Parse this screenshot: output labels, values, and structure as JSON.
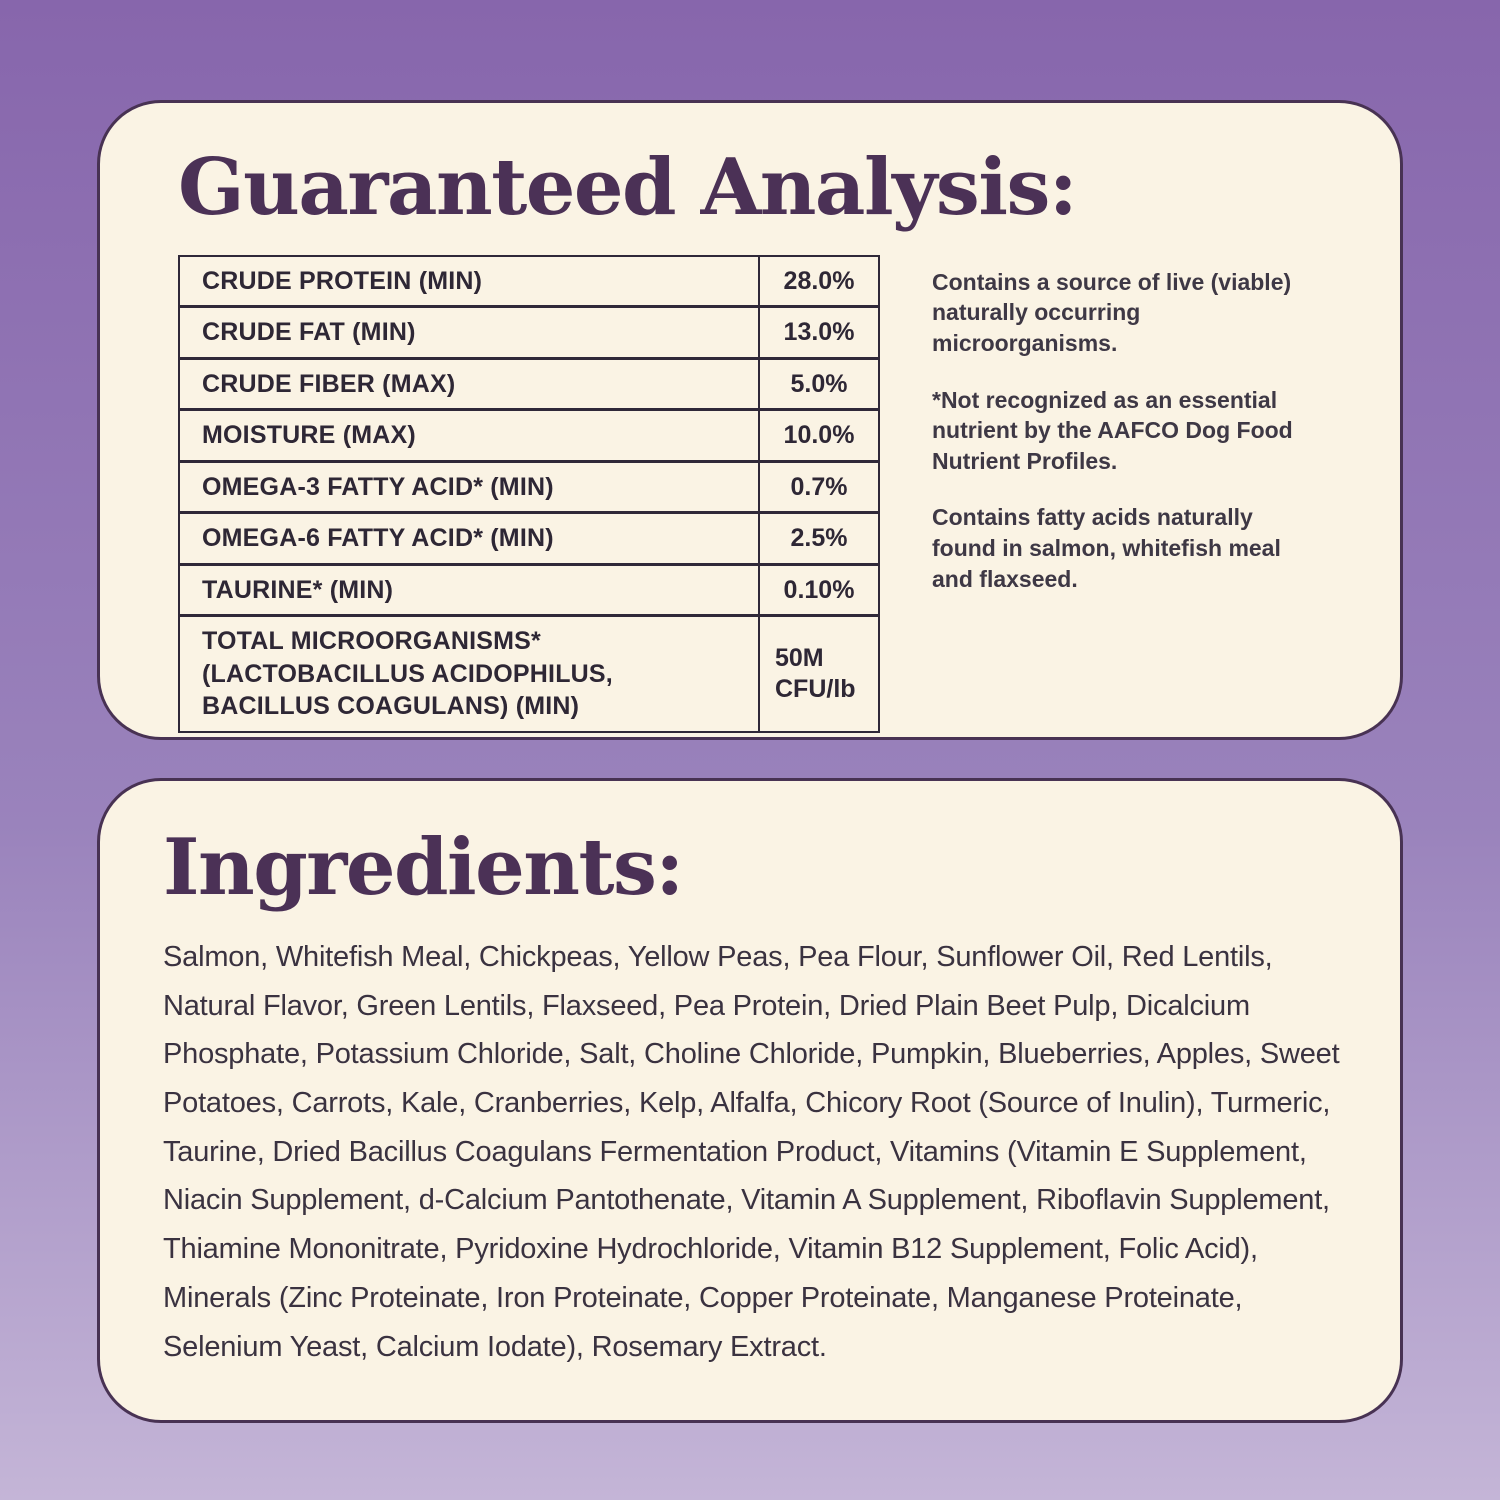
{
  "colors": {
    "background_gradient_top": "#8766AC",
    "background_gradient_bottom": "#C4B5D7",
    "card_background": "#FAF3E4",
    "card_border": "#483253",
    "heading_text": "#4B3156",
    "table_border": "#2F2838",
    "body_text": "#2E2735"
  },
  "analysis": {
    "title": "Guaranteed Analysis:",
    "table": {
      "rows": [
        {
          "label": "CRUDE PROTEIN (MIN)",
          "value": "28.0%"
        },
        {
          "label": "CRUDE FAT (MIN)",
          "value": "13.0%"
        },
        {
          "label": "CRUDE FIBER (MAX)",
          "value": "5.0%"
        },
        {
          "label": "MOISTURE (MAX)",
          "value": "10.0%"
        },
        {
          "label": "OMEGA-3 FATTY ACID* (MIN)",
          "value": "0.7%"
        },
        {
          "label": "OMEGA-6 FATTY ACID* (MIN)",
          "value": "2.5%"
        },
        {
          "label": "TAURINE* (MIN)",
          "value": "0.10%"
        },
        {
          "label": "TOTAL MICROORGANISMS* (LACTOBACILLUS ACIDOPHILUS, BACILLUS COAGULANS) (MIN)",
          "value": "50M CFU/lb",
          "value_multiline": true
        }
      ]
    },
    "notes": [
      "Contains a source of live (viable) naturally occurring microorganisms.",
      "*Not recognized as an essential nutrient by the AAFCO Dog Food Nutrient Profiles.",
      "Contains fatty acids naturally found in salmon, whitefish meal and flaxseed."
    ]
  },
  "ingredients": {
    "title": "Ingredients:",
    "text": "Salmon, Whitefish Meal, Chickpeas, Yellow Peas, Pea Flour, Sunflower Oil, Red Lentils, Natural Flavor, Green Lentils, Flaxseed, Pea Protein, Dried Plain Beet Pulp, Dicalcium Phosphate, Potassium Chloride, Salt, Choline Chloride, Pumpkin, Blueberries, Apples, Sweet Potatoes, Carrots, Kale, Cranberries, Kelp, Alfalfa, Chicory Root (Source of Inulin), Turmeric, Taurine, Dried Bacillus Coagulans Fermentation Product, Vitamins (Vitamin E Supplement, Niacin Supplement, d-Calcium Pantothenate, Vitamin A Supplement, Riboflavin Supplement, Thiamine Mononitrate, Pyridoxine Hydrochloride, Vitamin B12 Supplement, Folic Acid), Minerals (Zinc Proteinate, Iron Proteinate, Copper Proteinate, Manganese Proteinate, Selenium Yeast, Calcium Iodate), Rosemary Extract."
  }
}
